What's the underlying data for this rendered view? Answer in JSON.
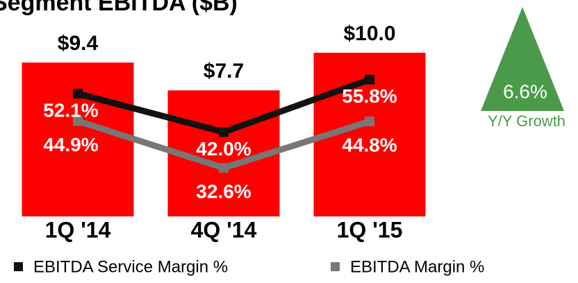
{
  "chart_data": {
    "type": "bar",
    "title": "Segment EBITDA ($B)",
    "categories": [
      "1Q '14",
      "4Q '14",
      "1Q '15"
    ],
    "values": [
      9.4,
      7.7,
      10.0
    ],
    "value_labels": [
      "$9.4",
      "$7.7",
      "$10.0"
    ],
    "color": "#ff0000",
    "lines": [
      {
        "name": "EBITDA Service Margin %",
        "color": "#111111",
        "values": [
          52.1,
          42.0,
          55.8
        ],
        "value_labels": [
          "52.1%",
          "42.0%",
          "55.8%"
        ]
      },
      {
        "name": "EBITDA Margin %",
        "color": "#777777",
        "values": [
          44.9,
          32.6,
          44.8
        ],
        "value_labels": [
          "44.9%",
          "32.6%",
          "44.8%"
        ]
      }
    ],
    "annotation": {
      "value": 6.6,
      "value_label": "6.6%",
      "text": "Y/Y Growth",
      "color": "#4a9a4a"
    }
  }
}
